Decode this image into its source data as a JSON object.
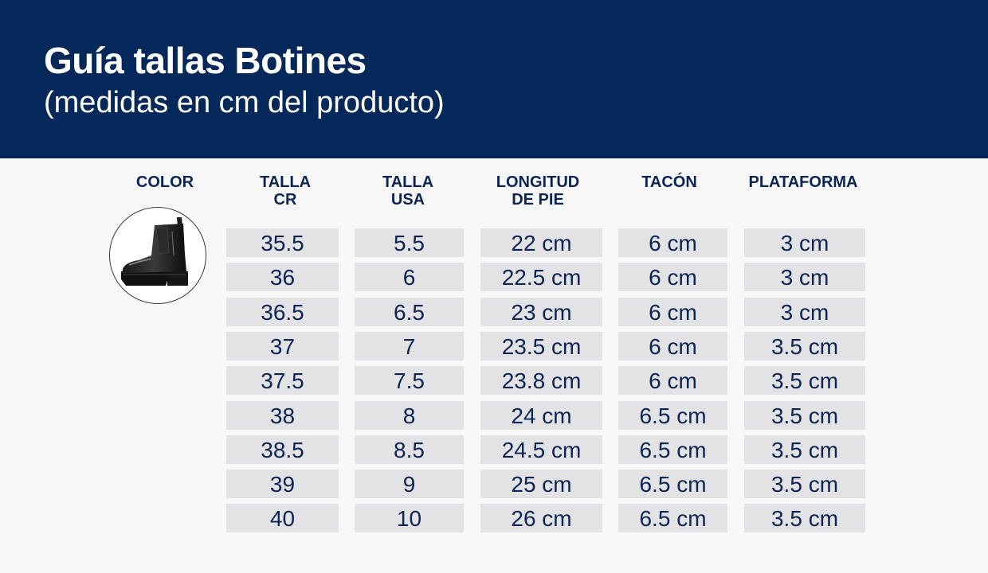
{
  "header": {
    "title": "Guía tallas Botines",
    "subtitle": "(medidas en cm del producto)"
  },
  "columns": [
    {
      "key": "color",
      "label": "COLOR"
    },
    {
      "key": "talla_cr",
      "label": "TALLA\nCR"
    },
    {
      "key": "talla_usa",
      "label": "TALLA\nUSA"
    },
    {
      "key": "longitud",
      "label": "LONGITUD\nDE PIE"
    },
    {
      "key": "tacon",
      "label": "TACÓN"
    },
    {
      "key": "plataforma",
      "label": "PLATAFORMA"
    }
  ],
  "product_image": {
    "icon": "black-chelsea-boot-image"
  },
  "rows": [
    [
      "35.5",
      "5.5",
      "22 cm",
      "6 cm",
      "3 cm"
    ],
    [
      "36",
      "6",
      "22.5 cm",
      "6 cm",
      "3 cm"
    ],
    [
      "36.5",
      "6.5",
      "23 cm",
      "6 cm",
      "3 cm"
    ],
    [
      "37",
      "7",
      "23.5 cm",
      "6 cm",
      "3.5 cm"
    ],
    [
      "37.5",
      "7.5",
      "23.8 cm",
      "6 cm",
      "3.5 cm"
    ],
    [
      "38",
      "8",
      "24 cm",
      "6.5 cm",
      "3.5 cm"
    ],
    [
      "38.5",
      "8.5",
      "24.5 cm",
      "6.5 cm",
      "3.5 cm"
    ],
    [
      "39",
      "9",
      "25 cm",
      "6.5 cm",
      "3.5 cm"
    ],
    [
      "40",
      "10",
      "26 cm",
      "6.5 cm",
      "3.5 cm"
    ]
  ],
  "colors": {
    "header_bg": "#04285a",
    "text": "#0b2453",
    "cell_bg": "#e3e3e6",
    "page_bg": "#f8f8f9"
  }
}
